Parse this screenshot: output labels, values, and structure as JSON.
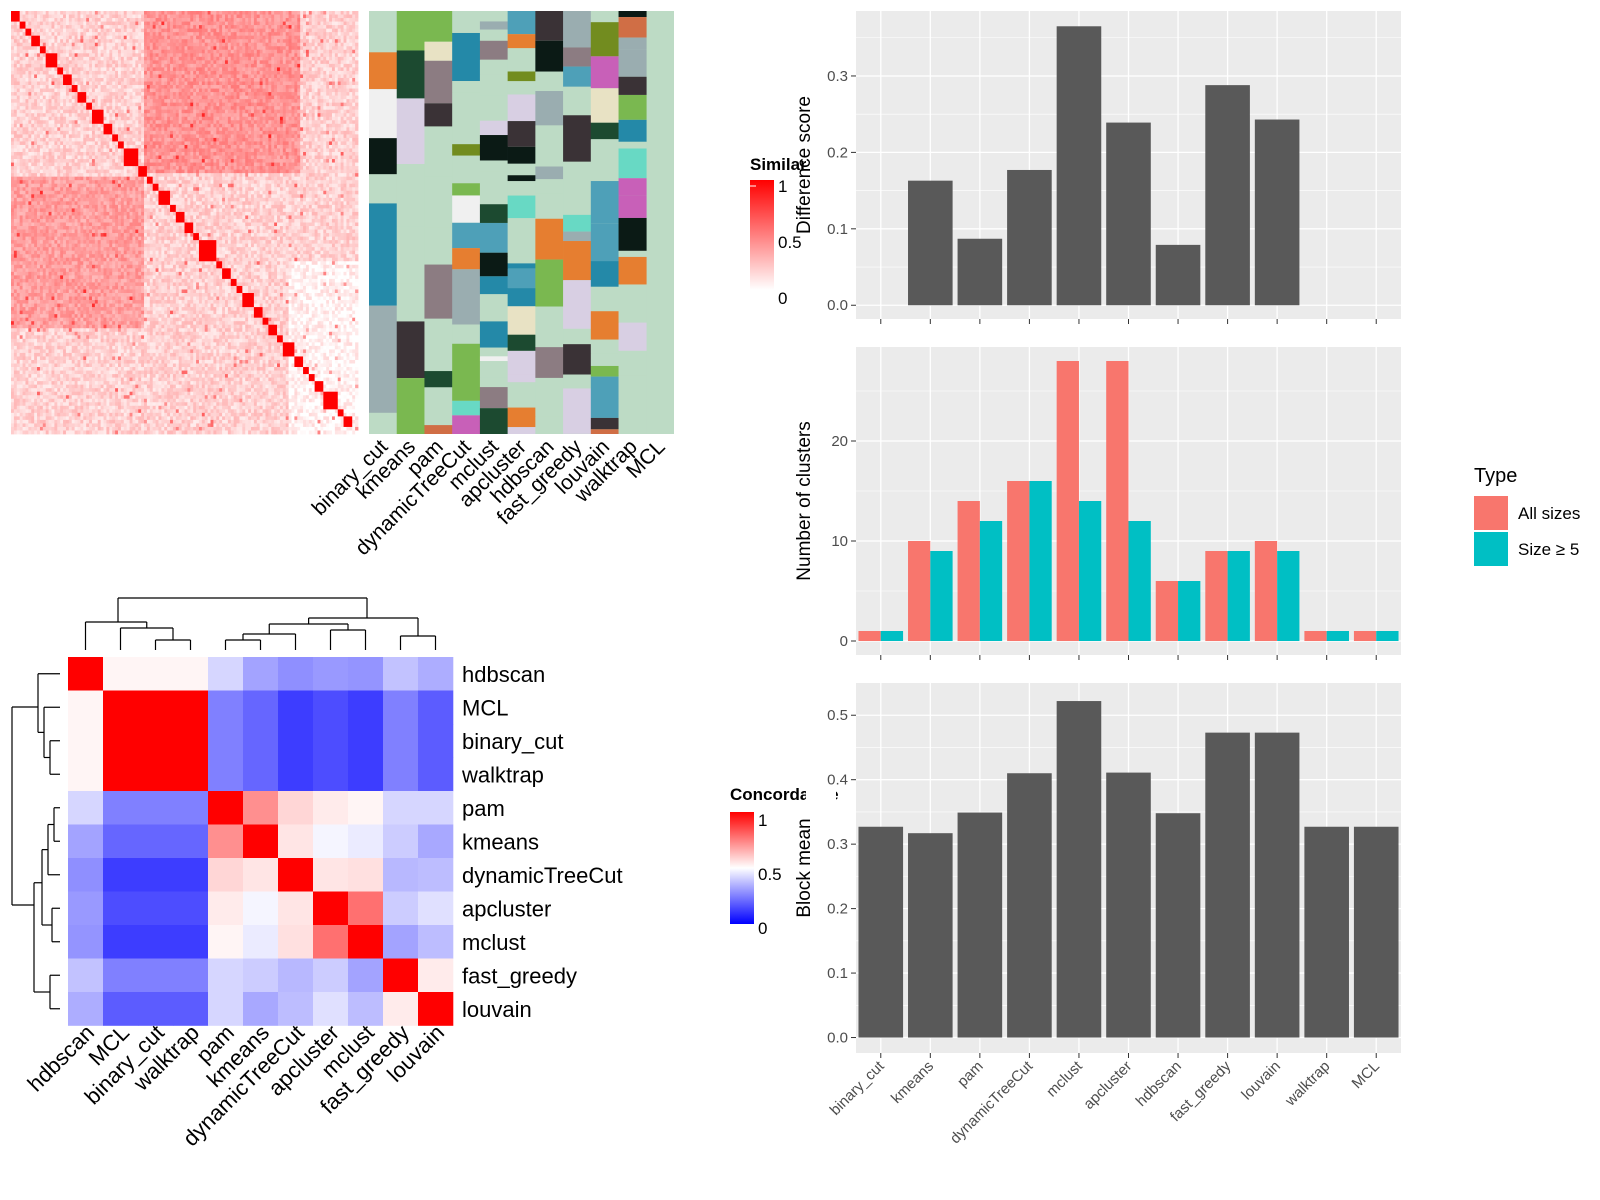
{
  "colors": {
    "panel_bg": "#ebebeb",
    "grid": "#ffffff",
    "bar_gray": "#595959",
    "all_sizes": "#f8766d",
    "size_ge5": "#00bfc4",
    "concordance_high": "#ff0000",
    "concordance_mid": "#ffffff",
    "concordance_low": "#0000ff",
    "similarity_low": "#ffffff",
    "similarity_high": "#ff0000",
    "assign_bg": "#bddbc5"
  },
  "chart_data": [
    {
      "id": "cell_similarity_heatmap",
      "type": "heatmap",
      "description_source": "cell-by-cell similarity matrix with block-diagonal structure",
      "n_cells": 120,
      "diagonal_blocks": [
        3,
        2,
        2,
        3,
        2,
        4,
        2,
        3,
        2,
        3,
        2,
        4,
        3,
        2,
        2,
        5,
        3,
        2,
        2,
        4,
        2,
        3,
        3,
        2,
        6,
        2,
        3,
        2,
        2,
        4,
        3,
        2,
        3,
        2,
        4,
        3,
        2,
        2,
        3,
        5,
        2,
        3
      ],
      "legend_title": "Similarity",
      "legend_ticks": [
        "1",
        "0.5",
        "0"
      ]
    },
    {
      "id": "cluster_assignment_heatmap",
      "type": "heatmap",
      "columns": [
        "binary_cut",
        "kmeans",
        "pam",
        "dynamicTreeCut",
        "mclust",
        "apcluster",
        "hdbscan",
        "fast_greedy",
        "louvain",
        "walktrap",
        "MCL"
      ],
      "palette": [
        "#e8e2c4",
        "#d8cfe3",
        "#8c7c82",
        "#728c1f",
        "#2489a8",
        "#0b1a15",
        "#e67e30",
        "#68d9c4",
        "#c860b8",
        "#1c4a30",
        "#9aadb0",
        "#d06e45",
        "#7ab850",
        "#3a3236",
        "#f0f0f0",
        "#4ea0b8"
      ]
    },
    {
      "id": "concordance_heatmap",
      "type": "heatmap",
      "rows": [
        "hdbscan",
        "MCL",
        "binary_cut",
        "walktrap",
        "pam",
        "kmeans",
        "dynamicTreeCut",
        "apcluster",
        "mclust",
        "fast_greedy",
        "louvain"
      ],
      "columns": [
        "hdbscan",
        "MCL",
        "binary_cut",
        "walktrap",
        "pam",
        "kmeans",
        "dynamicTreeCut",
        "apcluster",
        "mclust",
        "fast_greedy",
        "louvain"
      ],
      "values": [
        [
          1.0,
          0.52,
          0.52,
          0.52,
          0.42,
          0.32,
          0.28,
          0.3,
          0.29,
          0.38,
          0.34
        ],
        [
          0.52,
          1.0,
          1.0,
          1.0,
          0.25,
          0.2,
          0.12,
          0.15,
          0.12,
          0.25,
          0.18
        ],
        [
          0.52,
          1.0,
          1.0,
          1.0,
          0.25,
          0.2,
          0.12,
          0.15,
          0.12,
          0.25,
          0.18
        ],
        [
          0.52,
          1.0,
          1.0,
          1.0,
          0.25,
          0.2,
          0.12,
          0.15,
          0.12,
          0.25,
          0.18
        ],
        [
          0.42,
          0.25,
          0.25,
          0.25,
          1.0,
          0.72,
          0.58,
          0.54,
          0.52,
          0.42,
          0.42
        ],
        [
          0.32,
          0.2,
          0.2,
          0.2,
          0.72,
          1.0,
          0.55,
          0.48,
          0.46,
          0.4,
          0.33
        ],
        [
          0.28,
          0.12,
          0.12,
          0.12,
          0.58,
          0.55,
          1.0,
          0.55,
          0.56,
          0.36,
          0.37
        ],
        [
          0.3,
          0.15,
          0.15,
          0.15,
          0.54,
          0.48,
          0.55,
          1.0,
          0.78,
          0.4,
          0.44
        ],
        [
          0.29,
          0.12,
          0.12,
          0.12,
          0.52,
          0.46,
          0.56,
          0.78,
          1.0,
          0.32,
          0.37
        ],
        [
          0.38,
          0.25,
          0.25,
          0.25,
          0.42,
          0.4,
          0.36,
          0.4,
          0.32,
          1.0,
          0.54
        ],
        [
          0.34,
          0.18,
          0.18,
          0.18,
          0.42,
          0.33,
          0.37,
          0.44,
          0.37,
          0.54,
          1.0
        ]
      ],
      "legend_title": "Concordance",
      "legend_ticks": [
        "1",
        "0.5",
        "0"
      ]
    },
    {
      "id": "difference_score",
      "type": "bar",
      "categories": [
        "binary_cut",
        "kmeans",
        "pam",
        "dynamicTreeCut",
        "mclust",
        "apcluster",
        "hdbscan",
        "fast_greedy",
        "louvain",
        "walktrap",
        "MCL"
      ],
      "values": [
        0,
        0.163,
        0.087,
        0.177,
        0.365,
        0.239,
        0.079,
        0.288,
        0.243,
        0,
        0
      ],
      "ylabel": "Difference score",
      "ylim": [
        -0.018,
        0.385
      ],
      "yticks": [
        0.0,
        0.1,
        0.2,
        0.3
      ],
      "ytick_labels": [
        "0.0",
        "0.1",
        "0.2",
        "0.3"
      ],
      "grid": true
    },
    {
      "id": "number_of_clusters",
      "type": "bar",
      "categories": [
        "binary_cut",
        "kmeans",
        "pam",
        "dynamicTreeCut",
        "mclust",
        "apcluster",
        "hdbscan",
        "fast_greedy",
        "louvain",
        "walktrap",
        "MCL"
      ],
      "series": [
        {
          "name": "All sizes",
          "values": [
            1,
            10,
            14,
            16,
            28,
            28,
            6,
            9,
            10,
            1,
            1
          ]
        },
        {
          "name": "Size ≥ 5",
          "values": [
            1,
            9,
            12,
            16,
            14,
            12,
            6,
            9,
            9,
            1,
            1
          ]
        }
      ],
      "ylabel": "Number of clusters",
      "ylim": [
        -1.4,
        29.4
      ],
      "yticks": [
        0,
        10,
        20
      ],
      "ytick_labels": [
        "0",
        "10",
        "20"
      ],
      "legend_title": "Type",
      "legend_position": "right",
      "grid": true
    },
    {
      "id": "block_mean",
      "type": "bar",
      "categories": [
        "binary_cut",
        "kmeans",
        "pam",
        "dynamicTreeCut",
        "mclust",
        "apcluster",
        "hdbscan",
        "fast_greedy",
        "louvain",
        "walktrap",
        "MCL"
      ],
      "values": [
        0.327,
        0.317,
        0.349,
        0.41,
        0.522,
        0.411,
        0.348,
        0.473,
        0.473,
        0.327,
        0.327
      ],
      "ylabel": "Block mean",
      "ylim": [
        -0.024,
        0.55
      ],
      "yticks": [
        0.0,
        0.1,
        0.2,
        0.3,
        0.4,
        0.5
      ],
      "ytick_labels": [
        "0.0",
        "0.1",
        "0.2",
        "0.3",
        "0.4",
        "0.5"
      ],
      "grid": true
    }
  ]
}
